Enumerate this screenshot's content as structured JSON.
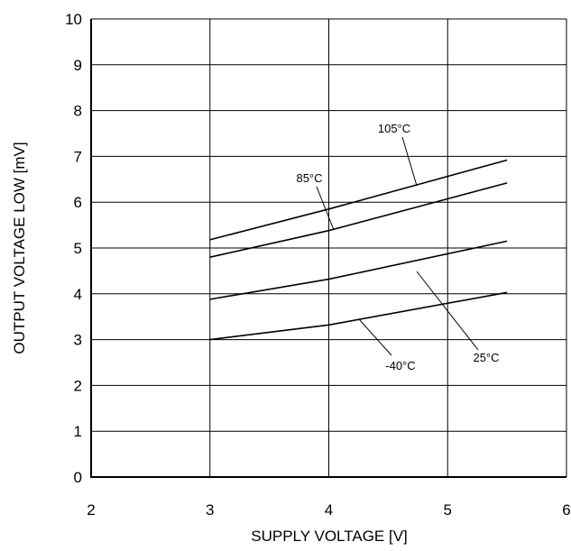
{
  "chart_data": {
    "type": "line",
    "xlabel": "SUPPLY VOLTAGE [V]",
    "ylabel": "OUTPUT VOLTAGE LOW [mV]",
    "xlim": [
      2,
      6
    ],
    "ylim": [
      0,
      10
    ],
    "xticks": [
      "2",
      "3",
      "4",
      "5",
      "6"
    ],
    "yticks": [
      "0",
      "1",
      "2",
      "3",
      "4",
      "5",
      "6",
      "7",
      "8",
      "9",
      "10"
    ],
    "grid": true,
    "legend": "none",
    "series": [
      {
        "name": "105°C",
        "x": [
          3,
          4,
          5.5
        ],
        "y": [
          5.18,
          5.85,
          6.92
        ]
      },
      {
        "name": "85°C",
        "x": [
          3,
          4,
          5.5
        ],
        "y": [
          4.8,
          5.38,
          6.42
        ]
      },
      {
        "name": "25°C",
        "x": [
          3,
          4,
          5.5
        ],
        "y": [
          3.88,
          4.32,
          5.15
        ]
      },
      {
        "name": "-40°C",
        "x": [
          3,
          4,
          5.5
        ],
        "y": [
          3.0,
          3.32,
          4.03
        ]
      }
    ],
    "line_color": "#000000"
  }
}
